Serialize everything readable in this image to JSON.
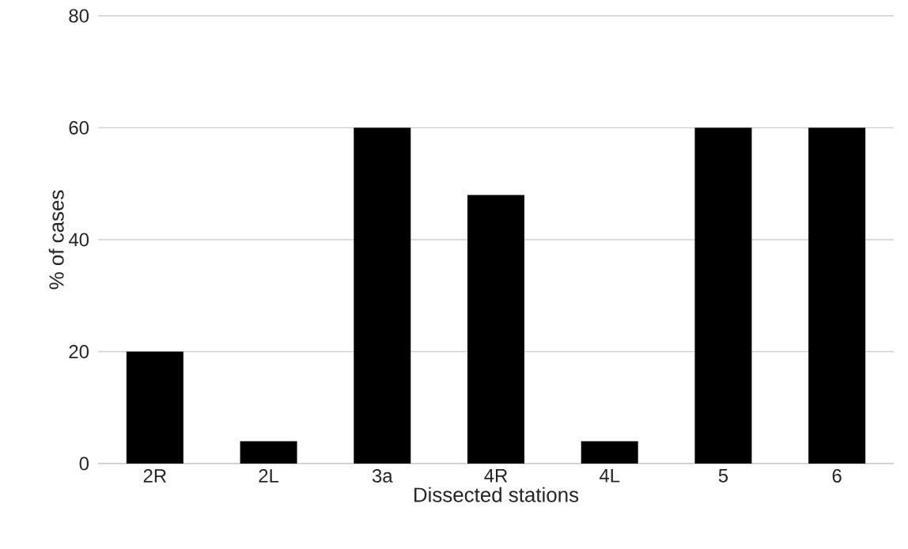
{
  "chart_data": {
    "type": "bar",
    "xlabel": "Dissected stations",
    "ylabel": "% of cases",
    "categories": [
      "2R",
      "2L",
      "3a",
      "4R",
      "4L",
      "5",
      "6"
    ],
    "values": [
      20,
      4,
      60,
      48,
      4,
      60,
      60
    ],
    "color": "#000000",
    "ylim": [
      0,
      80
    ],
    "yticks": [
      0,
      20,
      40,
      60,
      80
    ],
    "grid": "y"
  }
}
